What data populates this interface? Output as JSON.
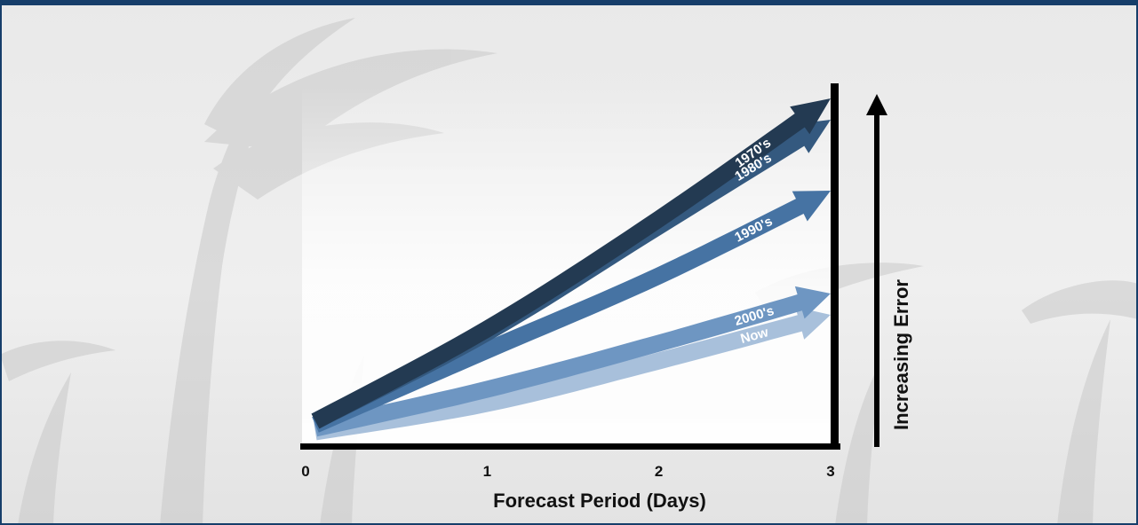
{
  "colors": {
    "frame": "#163e6a",
    "axis": "#000000"
  },
  "chart_data": {
    "type": "line",
    "title": "",
    "xlabel": "Forecast Period (Days)",
    "ylabel": "Increasing Error",
    "xlim": [
      0,
      3
    ],
    "ylim": [
      0,
      1
    ],
    "x_ticks": [
      "0",
      "1",
      "2",
      "3"
    ],
    "grid": false,
    "y_ticks_shown": false,
    "series": [
      {
        "name": "Now",
        "color": "#a8c0db",
        "x": [
          0,
          1,
          2,
          3
        ],
        "y": [
          0.02,
          0.1,
          0.22,
          0.35
        ]
      },
      {
        "name": "2000's",
        "color": "#6e96c2",
        "x": [
          0,
          1,
          2,
          3
        ],
        "y": [
          0.03,
          0.14,
          0.27,
          0.41
        ]
      },
      {
        "name": "1990's",
        "color": "#4673a3",
        "x": [
          0,
          1,
          2,
          3
        ],
        "y": [
          0.04,
          0.25,
          0.46,
          0.7
        ]
      },
      {
        "name": "1980's",
        "color": "#34597f",
        "x": [
          0,
          1,
          2,
          3
        ],
        "y": [
          0.05,
          0.3,
          0.6,
          0.9
        ]
      },
      {
        "name": "1970's",
        "color": "#233a52",
        "x": [
          0,
          1,
          2,
          3
        ],
        "y": [
          0.05,
          0.31,
          0.62,
          0.96
        ]
      }
    ]
  }
}
